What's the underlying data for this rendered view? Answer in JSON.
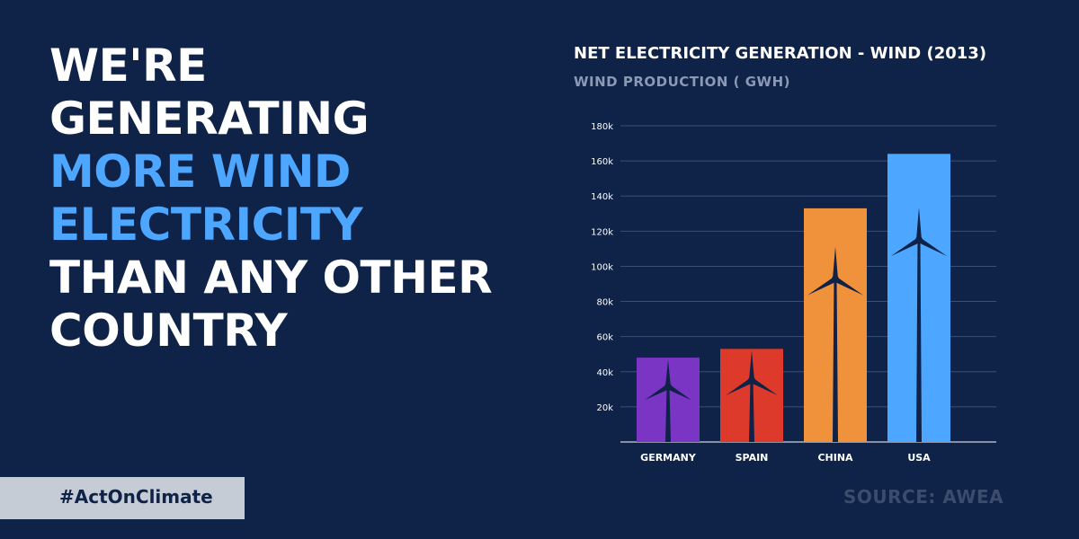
{
  "headline": {
    "lines": [
      {
        "text": "WE'RE",
        "accent": false
      },
      {
        "text": "GENERATING",
        "accent": false
      },
      {
        "text": "MORE WIND",
        "accent": true
      },
      {
        "text": "ELECTRICITY",
        "accent": true
      },
      {
        "text": "THAN ANY OTHER",
        "accent": false
      },
      {
        "text": "COUNTRY",
        "accent": false
      }
    ]
  },
  "hashtag": "#ActOnClimate",
  "source": "SOURCE:  AWEA",
  "colors": {
    "background": "#0f2247",
    "accent": "#4da6ff",
    "germany": "#7b35c4",
    "spain": "#dd3a2c",
    "china": "#f0913c",
    "usa": "#4da6ff"
  },
  "chart_data": {
    "type": "bar",
    "title": "NET ELECTRICITY GENERATION - WIND (2013)",
    "subtitle": "WIND PRODUCTION ( GWH)",
    "categories": [
      "GERMANY",
      "SPAIN",
      "CHINA",
      "USA"
    ],
    "values": [
      48000,
      53000,
      133000,
      164000
    ],
    "bar_colors": [
      "#7b35c4",
      "#dd3a2c",
      "#f0913c",
      "#4da6ff"
    ],
    "ylim": [
      0,
      180000
    ],
    "yticks": [
      20000,
      40000,
      60000,
      80000,
      100000,
      120000,
      140000,
      160000,
      180000
    ],
    "ytick_labels": [
      "20k",
      "40k",
      "60k",
      "80k",
      "100k",
      "120k",
      "140k",
      "160k",
      "180k"
    ],
    "grid": true,
    "icon": "wind-turbine-icon"
  }
}
